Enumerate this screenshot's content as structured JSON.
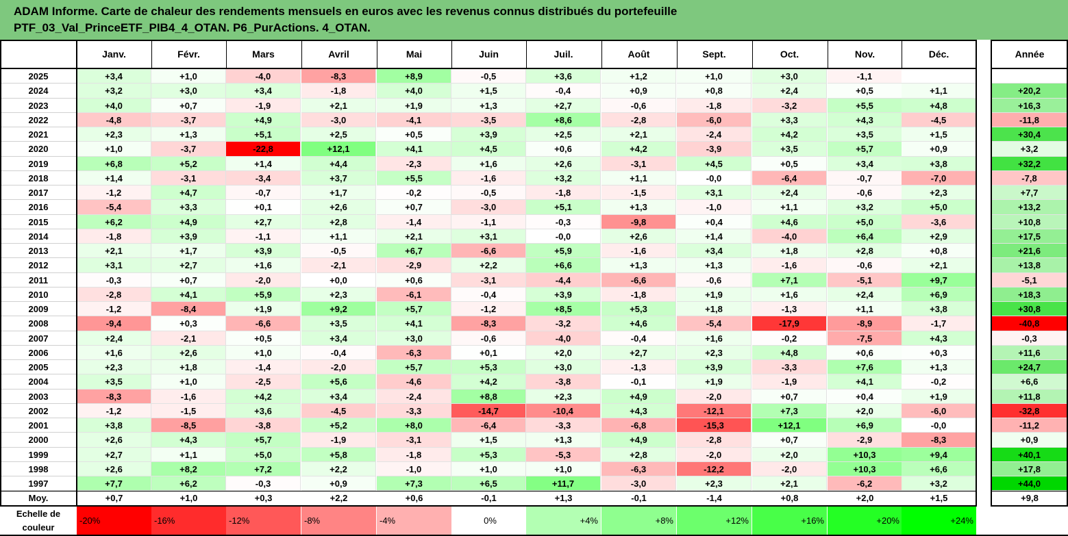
{
  "title": {
    "line1": "ADAM Informe. Carte de chaleur des rendements mensuels en euros avec les revenus connus distribués du portefeuille",
    "line2": "PTF_03_Val_PrinceETF_PIB4_4_OTAN. P6_PurActions. 4_OTAN."
  },
  "colors": {
    "title_bg": "#7ec87e",
    "negative_max": "#ff0000",
    "positive_max": "#00cc00",
    "neutral": "#ffffff"
  },
  "chart_data": {
    "type": "heatmap",
    "columns": [
      "Janv.",
      "Févr.",
      "Mars",
      "Avril",
      "Mai",
      "Juin",
      "Juil.",
      "Août",
      "Sept.",
      "Oct.",
      "Nov.",
      "Déc."
    ],
    "year_column": "Année",
    "rows": [
      {
        "year": "2025",
        "values": [
          "+3,4",
          "+1,0",
          "-4,0",
          "-8,3",
          "+8,9",
          "-0,5",
          "+3,6",
          "+1,2",
          "+1,0",
          "+3,0",
          "-1,1",
          ""
        ],
        "annual": ""
      },
      {
        "year": "2024",
        "values": [
          "+3,2",
          "+3,0",
          "+3,4",
          "-1,8",
          "+4,0",
          "+1,5",
          "-0,4",
          "+0,9",
          "+0,8",
          "+2,4",
          "+0,5",
          "+1,1"
        ],
        "annual": "+20,2"
      },
      {
        "year": "2023",
        "values": [
          "+4,0",
          "+0,7",
          "-1,9",
          "+2,1",
          "+1,9",
          "+1,3",
          "+2,7",
          "-0,6",
          "-1,8",
          "-3,2",
          "+5,5",
          "+4,8"
        ],
        "annual": "+16,3"
      },
      {
        "year": "2022",
        "values": [
          "-4,8",
          "-3,7",
          "+4,9",
          "-3,0",
          "-4,1",
          "-3,5",
          "+8,6",
          "-2,8",
          "-6,0",
          "+3,3",
          "+4,3",
          "-4,5"
        ],
        "annual": "-11,8"
      },
      {
        "year": "2021",
        "values": [
          "+2,3",
          "+1,3",
          "+5,1",
          "+2,5",
          "+0,5",
          "+3,9",
          "+2,5",
          "+2,1",
          "-2,4",
          "+4,2",
          "+3,5",
          "+1,5"
        ],
        "annual": "+30,4"
      },
      {
        "year": "2020",
        "values": [
          "+1,0",
          "-3,7",
          "-22,8",
          "+12,1",
          "+4,1",
          "+4,5",
          "+0,6",
          "+4,2",
          "-3,9",
          "+3,5",
          "+5,7",
          "+0,9"
        ],
        "annual": "+3,2"
      },
      {
        "year": "2019",
        "values": [
          "+6,8",
          "+5,2",
          "+1,4",
          "+4,4",
          "-2,3",
          "+1,6",
          "+2,6",
          "-3,1",
          "+4,5",
          "+0,5",
          "+3,4",
          "+3,8"
        ],
        "annual": "+32,2"
      },
      {
        "year": "2018",
        "values": [
          "+1,4",
          "-3,1",
          "-3,4",
          "+3,7",
          "+5,5",
          "-1,6",
          "+3,2",
          "+1,1",
          "-0,0",
          "-6,4",
          "-0,7",
          "-7,0"
        ],
        "annual": "-7,8"
      },
      {
        "year": "2017",
        "values": [
          "-1,2",
          "+4,7",
          "-0,7",
          "+1,7",
          "-0,2",
          "-0,5",
          "-1,8",
          "-1,5",
          "+3,1",
          "+2,4",
          "-0,6",
          "+2,3"
        ],
        "annual": "+7,7"
      },
      {
        "year": "2016",
        "values": [
          "-5,4",
          "+3,3",
          "+0,1",
          "+2,6",
          "+0,7",
          "-3,0",
          "+5,1",
          "+1,3",
          "-1,0",
          "+1,1",
          "+3,2",
          "+5,0"
        ],
        "annual": "+13,2"
      },
      {
        "year": "2015",
        "values": [
          "+6,2",
          "+4,9",
          "+2,7",
          "+2,8",
          "-1,4",
          "-1,1",
          "-0,3",
          "-9,8",
          "+0,4",
          "+4,6",
          "+5,0",
          "-3,6"
        ],
        "annual": "+10,8"
      },
      {
        "year": "2014",
        "values": [
          "-1,8",
          "+3,9",
          "-1,1",
          "+1,1",
          "+2,1",
          "+3,1",
          "-0,0",
          "+2,6",
          "+1,4",
          "-4,0",
          "+6,4",
          "+2,9"
        ],
        "annual": "+17,5"
      },
      {
        "year": "2013",
        "values": [
          "+2,1",
          "+1,7",
          "+3,9",
          "-0,5",
          "+6,7",
          "-6,6",
          "+5,9",
          "-1,6",
          "+3,4",
          "+1,8",
          "+2,8",
          "+0,8"
        ],
        "annual": "+21,6"
      },
      {
        "year": "2012",
        "values": [
          "+3,1",
          "+2,7",
          "+1,6",
          "-2,1",
          "-2,9",
          "+2,2",
          "+6,6",
          "+1,3",
          "+1,3",
          "-1,6",
          "-0,6",
          "+2,1"
        ],
        "annual": "+13,8"
      },
      {
        "year": "2011",
        "values": [
          "-0,3",
          "+0,7",
          "-2,0",
          "+0,0",
          "+0,6",
          "-3,1",
          "-4,4",
          "-6,6",
          "-0,6",
          "+7,1",
          "-5,1",
          "+9,7"
        ],
        "annual": "-5,1"
      },
      {
        "year": "2010",
        "values": [
          "-2,8",
          "+4,1",
          "+5,9",
          "+2,3",
          "-6,1",
          "-0,4",
          "+3,9",
          "-1,8",
          "+1,9",
          "+1,6",
          "+2,4",
          "+6,9"
        ],
        "annual": "+18,3"
      },
      {
        "year": "2009",
        "values": [
          "-1,2",
          "-8,4",
          "+1,9",
          "+9,2",
          "+5,7",
          "-1,2",
          "+8,5",
          "+5,3",
          "+1,8",
          "-1,3",
          "+1,1",
          "+3,8"
        ],
        "annual": "+30,8"
      },
      {
        "year": "2008",
        "values": [
          "-9,4",
          "+0,3",
          "-6,6",
          "+3,5",
          "+4,1",
          "-8,3",
          "-3,2",
          "+4,6",
          "-5,4",
          "-17,9",
          "-8,9",
          "-1,7"
        ],
        "annual": "-40,8"
      },
      {
        "year": "2007",
        "values": [
          "+2,4",
          "-2,1",
          "+0,5",
          "+3,4",
          "+3,0",
          "-0,6",
          "-4,0",
          "-0,4",
          "+1,6",
          "-0,2",
          "-7,5",
          "+4,3"
        ],
        "annual": "-0,3"
      },
      {
        "year": "2006",
        "values": [
          "+1,6",
          "+2,6",
          "+1,0",
          "-0,4",
          "-6,3",
          "+0,1",
          "+2,0",
          "+2,7",
          "+2,3",
          "+4,8",
          "+0,6",
          "+0,3"
        ],
        "annual": "+11,6"
      },
      {
        "year": "2005",
        "values": [
          "+2,3",
          "+1,8",
          "-1,4",
          "-2,0",
          "+5,7",
          "+5,3",
          "+3,0",
          "-1,3",
          "+3,9",
          "-3,3",
          "+7,6",
          "+1,3"
        ],
        "annual": "+24,7"
      },
      {
        "year": "2004",
        "values": [
          "+3,5",
          "+1,0",
          "-2,5",
          "+5,6",
          "-4,6",
          "+4,2",
          "-3,8",
          "-0,1",
          "+1,9",
          "-1,9",
          "+4,1",
          "-0,2"
        ],
        "annual": "+6,6"
      },
      {
        "year": "2003",
        "values": [
          "-8,3",
          "-1,6",
          "+4,2",
          "+3,4",
          "-2,4",
          "+8,8",
          "+2,3",
          "+4,9",
          "-2,0",
          "+0,7",
          "+0,4",
          "+1,9"
        ],
        "annual": "+11,8"
      },
      {
        "year": "2002",
        "values": [
          "-1,2",
          "-1,5",
          "+3,6",
          "-4,5",
          "-3,3",
          "-14,7",
          "-10,4",
          "+4,3",
          "-12,1",
          "+7,3",
          "+2,0",
          "-6,0"
        ],
        "annual": "-32,8"
      },
      {
        "year": "2001",
        "values": [
          "+3,8",
          "-8,5",
          "-3,8",
          "+5,2",
          "+8,0",
          "-6,4",
          "-3,3",
          "-6,8",
          "-15,3",
          "+12,1",
          "+6,9",
          "-0,0"
        ],
        "annual": "-11,2"
      },
      {
        "year": "2000",
        "values": [
          "+2,6",
          "+4,3",
          "+5,7",
          "-1,9",
          "-3,1",
          "+1,5",
          "+1,3",
          "+4,9",
          "-2,8",
          "+0,7",
          "-2,9",
          "-8,3"
        ],
        "annual": "+0,9"
      },
      {
        "year": "1999",
        "values": [
          "+2,7",
          "+1,1",
          "+5,0",
          "+5,8",
          "-1,8",
          "+5,3",
          "-5,3",
          "+2,8",
          "-2,0",
          "+2,0",
          "+10,3",
          "+9,4"
        ],
        "annual": "+40,1"
      },
      {
        "year": "1998",
        "values": [
          "+2,6",
          "+8,2",
          "+7,2",
          "+2,2",
          "-1,0",
          "+1,0",
          "+1,0",
          "-6,3",
          "-12,2",
          "-2,0",
          "+10,3",
          "+6,6"
        ],
        "annual": "+17,8"
      },
      {
        "year": "1997",
        "values": [
          "+7,7",
          "+6,2",
          "-0,3",
          "+0,9",
          "+7,3",
          "+6,5",
          "+11,7",
          "-3,0",
          "+2,3",
          "+2,1",
          "-6,2",
          "+3,2"
        ],
        "annual": "+44,0"
      }
    ],
    "average": {
      "label": "Moy.",
      "values": [
        "+0,7",
        "+1,0",
        "+0,3",
        "+2,2",
        "+0,6",
        "-0,1",
        "+1,3",
        "-0,1",
        "-1,4",
        "+0,8",
        "+2,0",
        "+1,5"
      ],
      "annual": "+9,8"
    },
    "scale": {
      "label_line1": "Echelle de",
      "label_line2": "couleur",
      "steps": [
        "-20%",
        "-16%",
        "-12%",
        "-8%",
        "-4%",
        "0%",
        "+4%",
        "+8%",
        "+12%",
        "+16%",
        "+20%",
        "+24%"
      ],
      "step_values": [
        -20,
        -16,
        -12,
        -8,
        -4,
        0,
        4,
        8,
        12,
        16,
        20,
        24
      ]
    }
  }
}
